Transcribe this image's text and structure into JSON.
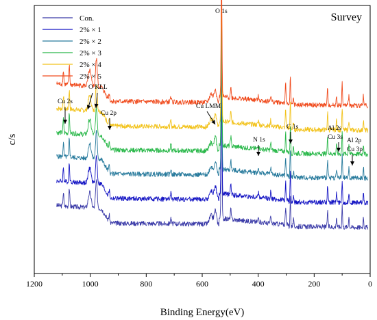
{
  "chart_data": {
    "type": "line",
    "title": "Survey",
    "xlabel": "Binding Energy(eV)",
    "ylabel": "c/s",
    "xlim": [
      1200,
      0
    ],
    "x_reversed": true,
    "x_ticks": [
      1200,
      1000,
      800,
      600,
      400,
      200,
      0
    ],
    "grid": false,
    "legend_position": "top-left",
    "series": [
      {
        "name": "Con.",
        "color": "#3b3ba8",
        "offset": 0,
        "scale": 1.0
      },
      {
        "name": "2% × 1",
        "color": "#1515c4",
        "offset": 1,
        "scale": 1.0
      },
      {
        "name": "2% × 2",
        "color": "#277a9c",
        "offset": 2,
        "scale": 1.0
      },
      {
        "name": "2% × 3",
        "color": "#2ab84a",
        "offset": 3,
        "scale": 1.0
      },
      {
        "name": "2% × 4",
        "color": "#f2c21a",
        "offset": 4,
        "scale": 1.0
      },
      {
        "name": "2% × 5",
        "color": "#f04a1c",
        "offset": 5,
        "scale": 1.0
      }
    ],
    "peaks": [
      {
        "be": 1096,
        "h": 0.8,
        "w": 1.6
      },
      {
        "be": 1075,
        "h": 1.1,
        "w": 1.6
      },
      {
        "be": 1002,
        "h": 0.9,
        "w": 5
      },
      {
        "be": 978,
        "h": 1.6,
        "w": 3
      },
      {
        "be": 932,
        "h": 0.4,
        "w": 2
      },
      {
        "be": 712,
        "h": 0.35,
        "w": 1.6
      },
      {
        "be": 568,
        "h": 0.5,
        "w": 6
      },
      {
        "be": 553,
        "h": 0.8,
        "w": 4
      },
      {
        "be": 531,
        "h": 7.5,
        "w": 1.6
      },
      {
        "be": 498,
        "h": 0.6,
        "w": 1.6
      },
      {
        "be": 399,
        "h": 0.25,
        "w": 2
      },
      {
        "be": 355,
        "h": 0.4,
        "w": 1.5
      },
      {
        "be": 302,
        "h": 1.1,
        "w": 1.4
      },
      {
        "be": 285,
        "h": 1.7,
        "w": 1.3
      },
      {
        "be": 274,
        "h": 0.4,
        "w": 1.3
      },
      {
        "be": 152,
        "h": 1.0,
        "w": 1.4
      },
      {
        "be": 120,
        "h": 0.6,
        "w": 1.4
      },
      {
        "be": 100,
        "h": 1.3,
        "w": 1.3
      },
      {
        "be": 76,
        "h": 0.6,
        "w": 1.5
      },
      {
        "be": 24,
        "h": 0.6,
        "w": 1.4
      }
    ],
    "annotations": [
      {
        "text": "Cu 2s",
        "x": 1100
      },
      {
        "text": "O KLL",
        "x": 990
      },
      {
        "text": "Cu 2p",
        "x": 932
      },
      {
        "text": "Cu LMM",
        "x": 560
      },
      {
        "text": "O 1s",
        "x": 531
      },
      {
        "text": "N 1s",
        "x": 399
      },
      {
        "text": "C 1s",
        "x": 285
      },
      {
        "text": "Al 2s",
        "x": 118
      },
      {
        "text": "Cu 3s",
        "x": 118
      },
      {
        "text": "Al 2p",
        "x": 74
      },
      {
        "text": "Cu 3p",
        "x": 74
      }
    ]
  }
}
